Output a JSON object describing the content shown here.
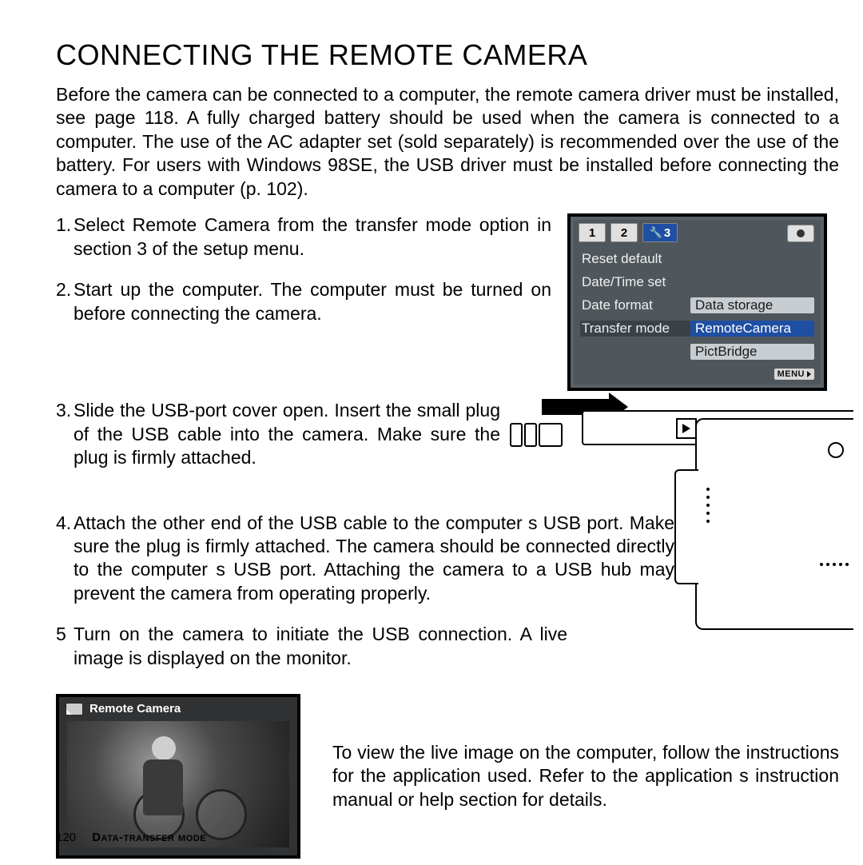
{
  "title": "CONNECTING THE REMOTE CAMERA",
  "intro": "Before the camera can be connected to a computer, the remote camera driver must be installed, see page 118. A fully charged battery should be used when the camera is connected to a computer. The use of the AC adapter set (sold separately) is recommended over the use of the battery. For users with Windows 98SE, the USB driver must be installed before connecting the camera to a computer (p. 102).",
  "steps": {
    "s1_num": "1.",
    "s1": "Select Remote Camera from the transfer mode option in section 3 of the setup menu.",
    "s2_num": "2.",
    "s2": "Start up the computer. The computer must be turned on before connecting the camera.",
    "s3_num": "3.",
    "s3": "Slide the USB-port cover open. Insert the small plug of the USB cable into the camera. Make sure the plug is firmly attached.",
    "s4_num": "4.",
    "s4": "Attach the other end of the USB cable to the computer s USB port. Make sure the plug is firmly attached. The camera should be con­nected directly to the computer s USB port. Attaching the camera to a USB hub may prevent the camera from operating properly.",
    "s5_num": "5",
    "s5": "Turn on the camera to initiate the USB connection. A live image is displayed on the monitor."
  },
  "lcd": {
    "tab1": "1",
    "tab2": "2",
    "tab3": "3",
    "rows": {
      "r1": "Reset default",
      "r2": "Date/Time set",
      "r3": "Date format",
      "r4": "Transfer mode",
      "v3": "Data storage",
      "v4": "RemoteCamera",
      "v5": "PictBridge"
    },
    "menu": "MENU"
  },
  "live": {
    "title": "Remote Camera"
  },
  "bottom_text": "To view the live image on the computer, follow the instructions for the application used. Refer to the application s instruction manual or help section for details.",
  "footer": {
    "page": "120",
    "section": "Data-transfer mode"
  }
}
